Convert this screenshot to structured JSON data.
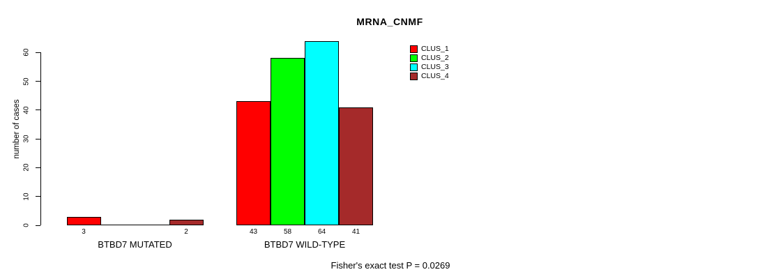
{
  "chart_data": {
    "type": "bar",
    "title": "MRNA_CNMF",
    "ylabel": "number of cases",
    "xlabel": "",
    "ylim": [
      0,
      60
    ],
    "yticks": [
      0,
      10,
      20,
      30,
      40,
      50,
      60
    ],
    "grid": false,
    "legend_position": "top-right",
    "categories": [
      "BTBD7 MUTATED",
      "BTBD7 WILD-TYPE"
    ],
    "series": [
      {
        "name": "CLUS_1",
        "color": "#ff0000",
        "values": [
          3,
          43
        ]
      },
      {
        "name": "CLUS_2",
        "color": "#00ff00",
        "values": [
          0,
          58
        ]
      },
      {
        "name": "CLUS_3",
        "color": "#00ffff",
        "values": [
          0,
          64
        ]
      },
      {
        "name": "CLUS_4",
        "color": "#a52a2a",
        "values": [
          2,
          41
        ]
      }
    ],
    "bar_value_labels": [
      [
        "3",
        "",
        "",
        "2"
      ],
      [
        "43",
        "58",
        "64",
        "41"
      ]
    ],
    "annotation": "Fisher's exact test P = 0.0269"
  }
}
